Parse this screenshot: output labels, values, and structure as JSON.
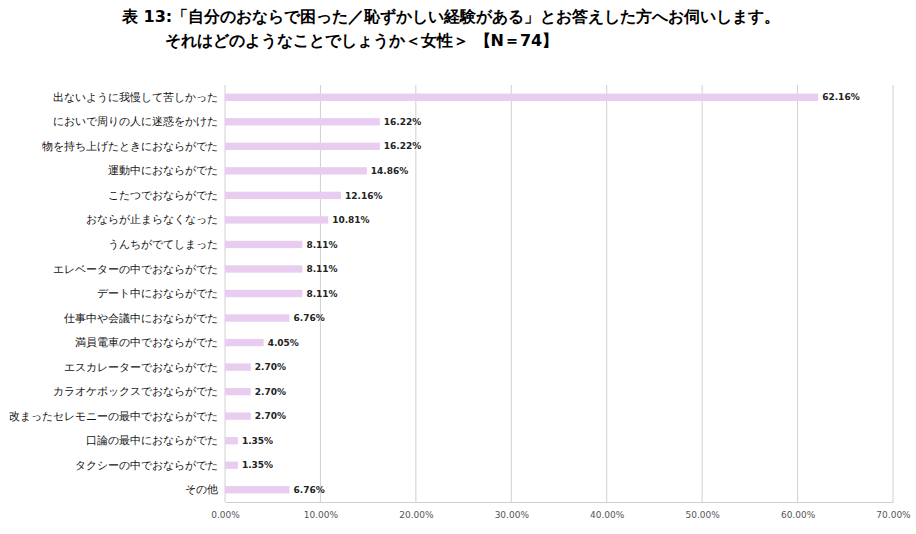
{
  "chart_data": {
    "type": "bar",
    "orientation": "horizontal",
    "title": "表 13:「自分のおならで困った／恥ずかしい経験がある」とお答えした方へお伺いします。\nそれはどのようなことでしょうか＜女性＞ 【N＝74】",
    "categories": [
      "出ないように我慢して苦しかった",
      "においで周りの人に迷惑をかけた",
      "物を持ち上げたときにおならがでた",
      "運動中におならがでた",
      "こたつでおならがでた",
      "おならが止まらなくなった",
      "うんちがでてしまった",
      "エレベーターの中でおならがでた",
      "デート中におならがでた",
      "仕事中や会議中におならがでた",
      "満員電車の中でおならがでた",
      "エスカレーターでおならがでた",
      "カラオケボックスでおならがでた",
      "改まったセレモニーの最中でおならがでた",
      "口論の最中におならがでた",
      "タクシーの中でおならがでた",
      "その他"
    ],
    "values": [
      62.16,
      16.22,
      16.22,
      14.86,
      12.16,
      10.81,
      8.11,
      8.11,
      8.11,
      6.76,
      4.05,
      2.7,
      2.7,
      2.7,
      1.35,
      1.35,
      6.76
    ],
    "value_labels": [
      "62.16%",
      "16.22%",
      "16.22%",
      "14.86%",
      "12.16%",
      "10.81%",
      "8.11%",
      "8.11%",
      "8.11%",
      "6.76%",
      "4.05%",
      "2.70%",
      "2.70%",
      "2.70%",
      "1.35%",
      "1.35%",
      "6.76%"
    ],
    "color": "#e9cdf1",
    "xlim": [
      0,
      70
    ],
    "xticks": [
      {
        "value": 0,
        "label": "0.00%"
      },
      {
        "value": 10,
        "label": "10.00%"
      },
      {
        "value": 20,
        "label": "20.00%"
      },
      {
        "value": 30,
        "label": "30.00%"
      },
      {
        "value": 40,
        "label": "40.00%"
      },
      {
        "value": 50,
        "label": "50.00%"
      },
      {
        "value": 60,
        "label": "60.00%"
      },
      {
        "value": 70,
        "label": "70.00%"
      }
    ],
    "grid": true,
    "data_labels": true
  }
}
